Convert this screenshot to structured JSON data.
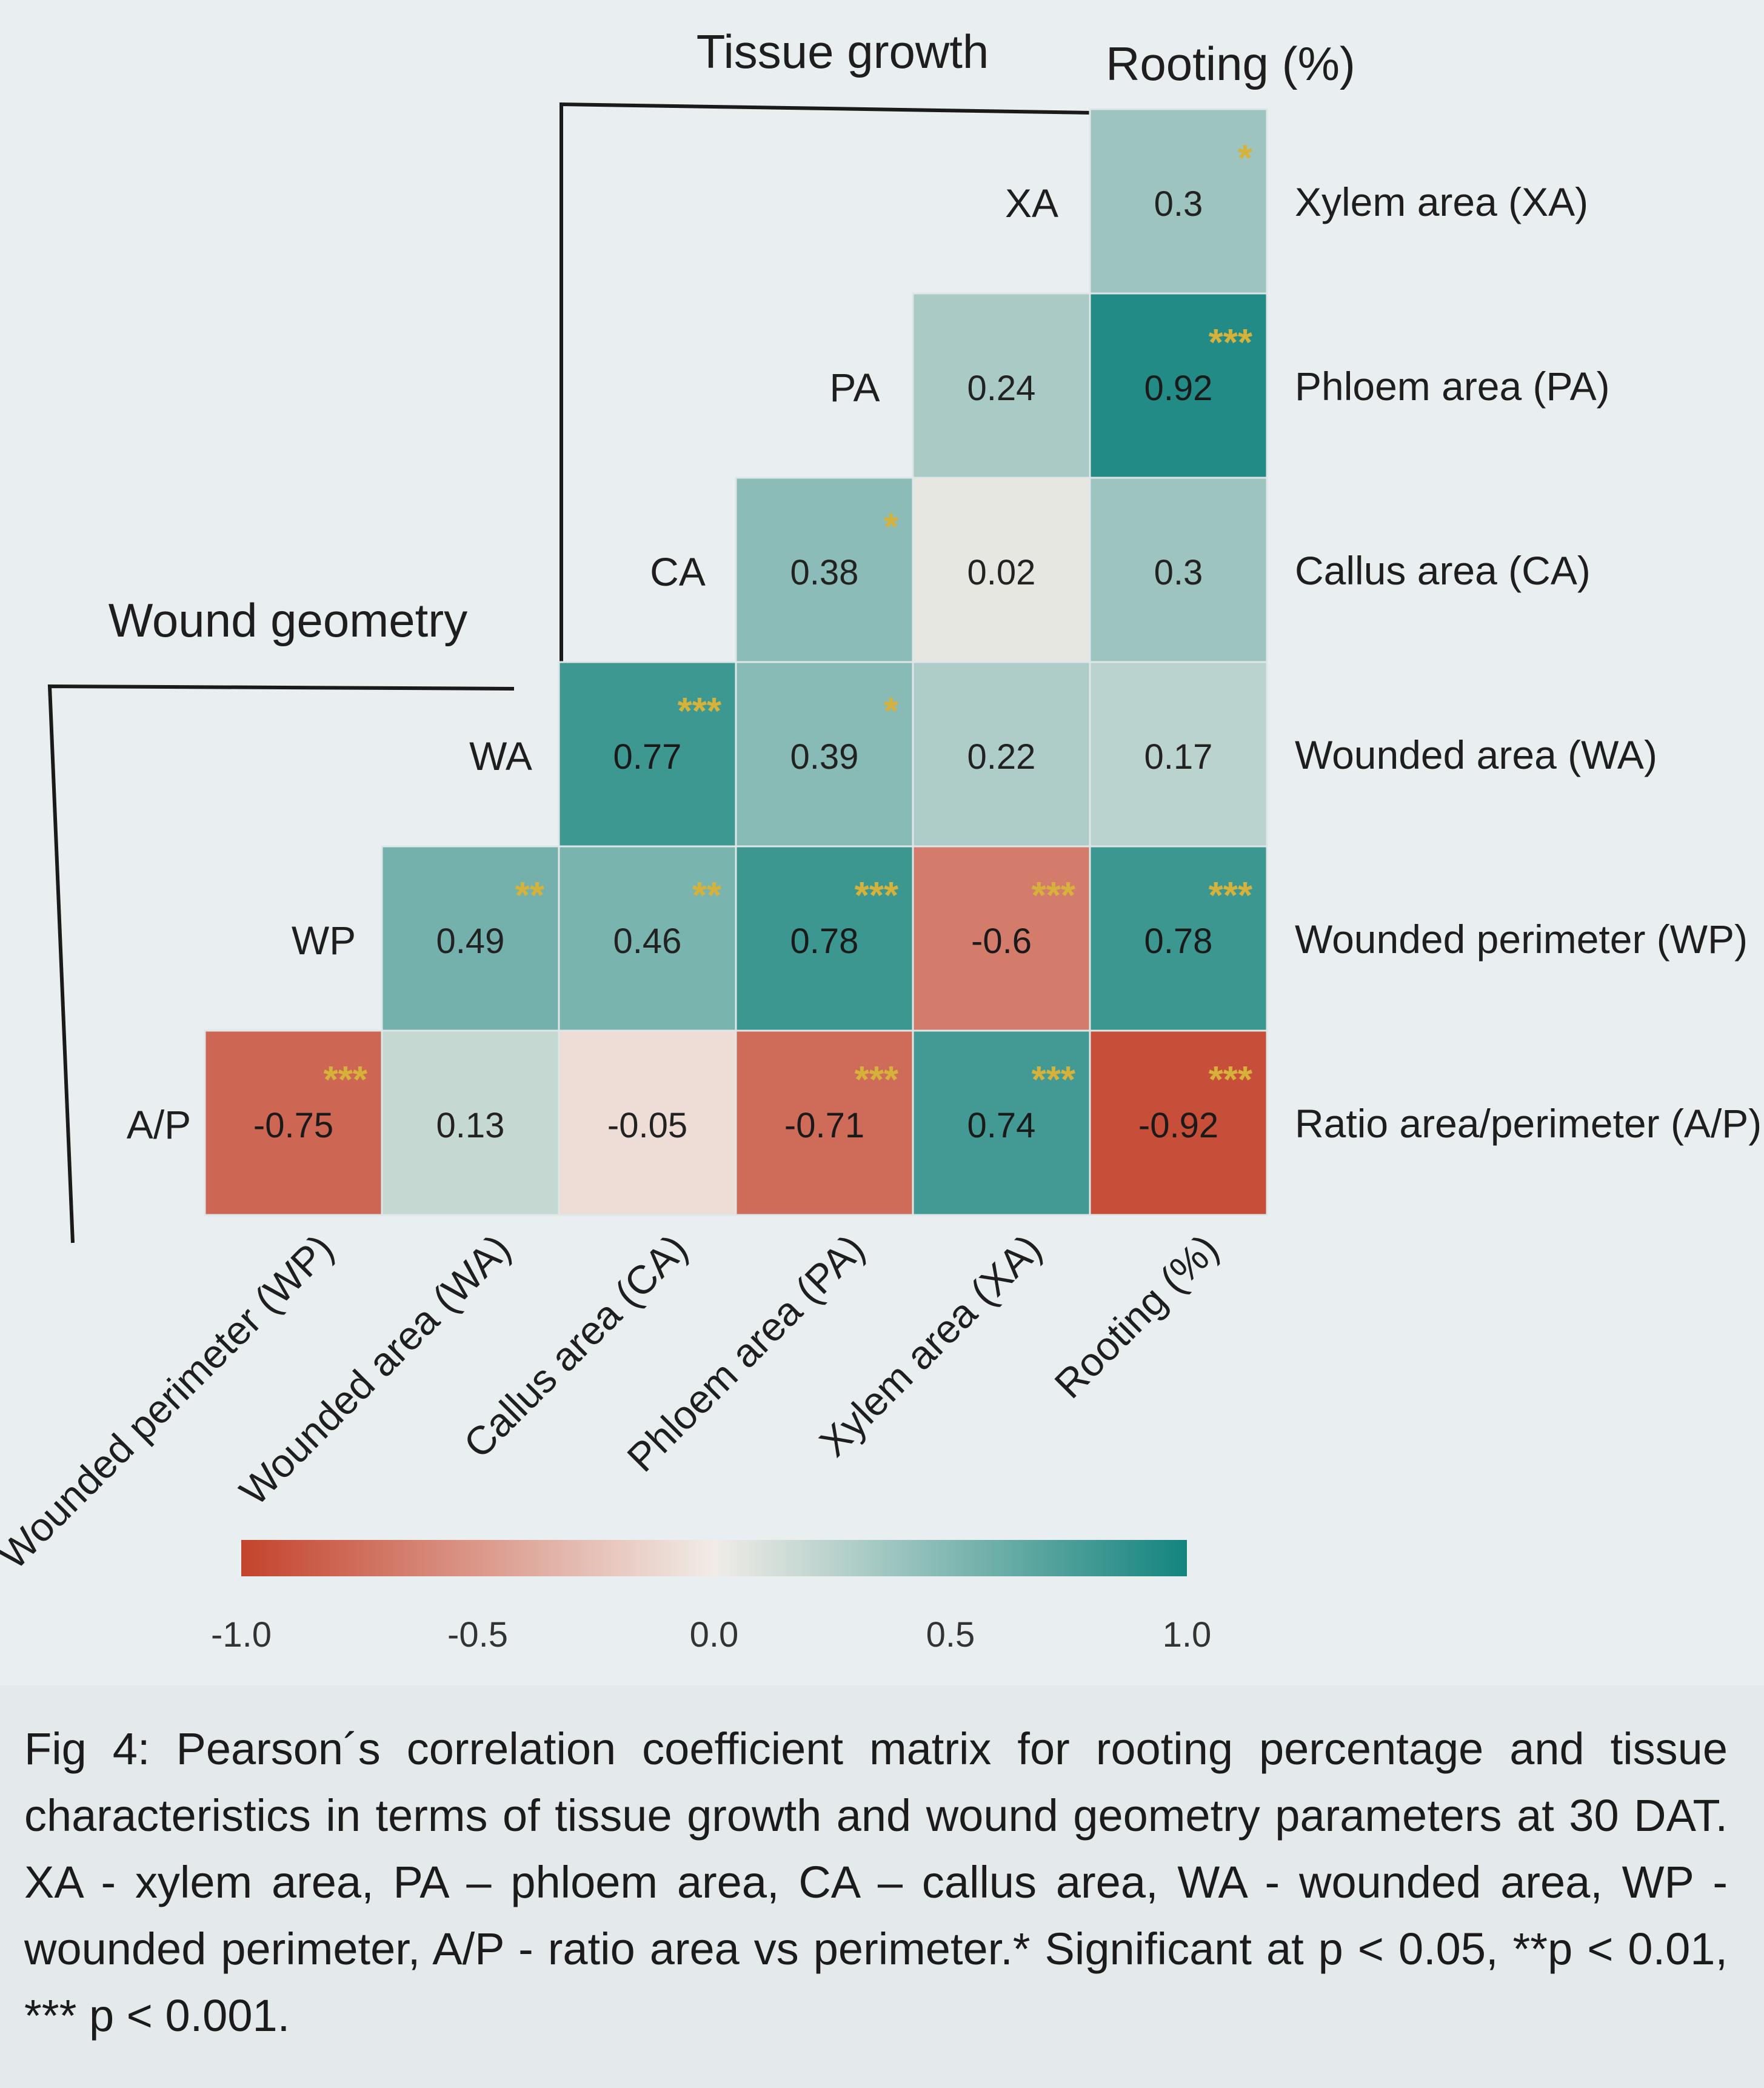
{
  "chart_data": {
    "type": "heatmap",
    "group_labels": {
      "tissue_growth": "Tissue growth",
      "rooting": "Rooting (%)",
      "wound_geometry": "Wound geometry"
    },
    "columns": [
      "Wounded perimeter (WP)",
      "Wounded area (WA)",
      "Callus area (CA)",
      "Phloem area (PA)",
      "Xylem area (XA)",
      "Rooting (%)"
    ],
    "rows": [
      {
        "label": "Xylem area (XA)",
        "diag": "XA",
        "values": [
          null,
          null,
          null,
          null,
          null,
          0.3
        ],
        "sig": [
          "",
          "",
          "",
          "",
          "",
          "*"
        ]
      },
      {
        "label": "Phloem area (PA)",
        "diag": "PA",
        "values": [
          null,
          null,
          null,
          null,
          0.24,
          0.92
        ],
        "sig": [
          "",
          "",
          "",
          "",
          "",
          "***"
        ]
      },
      {
        "label": "Callus area (CA)",
        "diag": "CA",
        "values": [
          null,
          null,
          null,
          0.38,
          0.02,
          0.3
        ],
        "sig": [
          "",
          "",
          "",
          "*",
          "",
          ""
        ]
      },
      {
        "label": "Wounded area (WA)",
        "diag": "WA",
        "values": [
          null,
          null,
          0.77,
          0.39,
          0.22,
          0.17
        ],
        "sig": [
          "",
          "",
          "***",
          "*",
          "",
          ""
        ]
      },
      {
        "label": "Wounded perimeter (WP)",
        "diag": "WP",
        "values": [
          null,
          0.49,
          0.46,
          0.78,
          -0.6,
          0.78
        ],
        "sig": [
          "",
          "**",
          "**",
          "***",
          "***",
          "***"
        ]
      },
      {
        "label": "Ratio area/perimeter (A/P)",
        "diag": "A/P",
        "values": [
          -0.75,
          0.13,
          -0.05,
          -0.71,
          0.74,
          -0.92
        ],
        "sig": [
          "***",
          "",
          "",
          "***",
          "***",
          "***"
        ]
      }
    ],
    "colorbar": {
      "range": [
        -1.0,
        1.0
      ],
      "ticks": [
        "-1.0",
        "-0.5",
        "0.0",
        "0.5",
        "1.0"
      ],
      "colors": {
        "negative": "#c4432c",
        "neutral": "#f1ece7",
        "positive": "#14847e"
      }
    },
    "significance_color": "#d6b23a"
  },
  "caption": "Fig 4: Pearson´s correlation coefficient matrix for rooting percentage and tissue characteristics in terms of tissue growth and wound geometry parameters at 30 DAT. XA - xylem area, PA – phloem area, CA – callus area, WA - wounded area, WP - wounded perimeter, A/P - ratio area vs perimeter.* Significant at p < 0.05, **p < 0.01, *** p < 0.001."
}
